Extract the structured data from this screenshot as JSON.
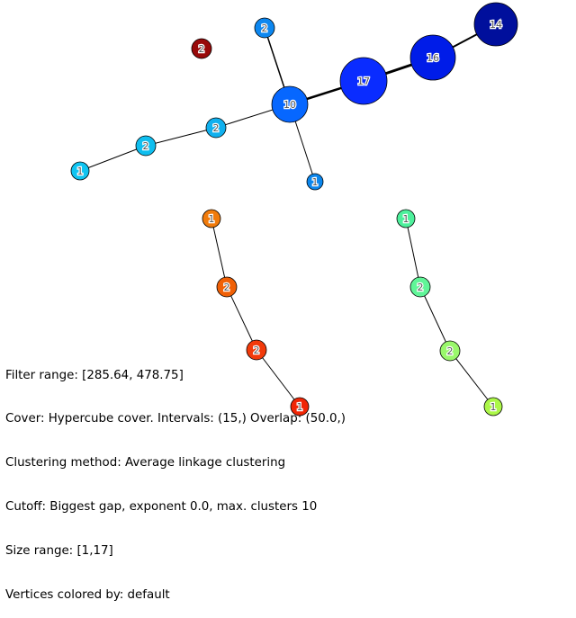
{
  "graph": {
    "nodes": [
      {
        "id": "n14",
        "label": "14",
        "color": "#000f9c"
      },
      {
        "id": "n16",
        "label": "16",
        "color": "#001ce8"
      },
      {
        "id": "n17",
        "label": "17",
        "color": "#0a2cff"
      },
      {
        "id": "n10",
        "label": "10",
        "color": "#0667ff"
      },
      {
        "id": "n2a",
        "label": "2",
        "color": "#0c87f0"
      },
      {
        "id": "n1a",
        "label": "1",
        "color": "#0b86ec"
      },
      {
        "id": "n2b",
        "label": "2",
        "color": "#11b0ee"
      },
      {
        "id": "n2c",
        "label": "2",
        "color": "#0fbeef"
      },
      {
        "id": "n1b",
        "label": "1",
        "color": "#10c4f1"
      },
      {
        "id": "n2red",
        "label": "2",
        "color": "#980a0a"
      },
      {
        "id": "n1c",
        "label": "1",
        "color": "#f07b0c"
      },
      {
        "id": "n2d",
        "label": "2",
        "color": "#f06006"
      },
      {
        "id": "n2e",
        "label": "2",
        "color": "#f23a0a"
      },
      {
        "id": "n1d",
        "label": "1",
        "color": "#f02606"
      },
      {
        "id": "n1e",
        "label": "1",
        "color": "#4ef09c"
      },
      {
        "id": "n2f",
        "label": "2",
        "color": "#60f598"
      },
      {
        "id": "n2g",
        "label": "2",
        "color": "#9af76c"
      },
      {
        "id": "n1f",
        "label": "1",
        "color": "#acf748"
      }
    ],
    "edges": [
      {
        "from": "n14",
        "to": "n16",
        "weight": 2
      },
      {
        "from": "n16",
        "to": "n17",
        "weight": 3
      },
      {
        "from": "n17",
        "to": "n10",
        "weight": 2.5
      },
      {
        "from": "n10",
        "to": "n2a",
        "weight": 1.5
      },
      {
        "from": "n10",
        "to": "n1a",
        "weight": 1
      },
      {
        "from": "n10",
        "to": "n2b",
        "weight": 1
      },
      {
        "from": "n2b",
        "to": "n2c",
        "weight": 1
      },
      {
        "from": "n2c",
        "to": "n1b",
        "weight": 1
      },
      {
        "from": "n1c",
        "to": "n2d",
        "weight": 1
      },
      {
        "from": "n2d",
        "to": "n2e",
        "weight": 1
      },
      {
        "from": "n2e",
        "to": "n1d",
        "weight": 1
      },
      {
        "from": "n1e",
        "to": "n2f",
        "weight": 1
      },
      {
        "from": "n2f",
        "to": "n2g",
        "weight": 1
      },
      {
        "from": "n2g",
        "to": "n1f",
        "weight": 1
      }
    ]
  },
  "info": {
    "filter_range": "Filter range: [285.64, 478.75]",
    "cover": "Cover: Hypercube cover. Intervals: (15,) Overlap: (50.0,)",
    "clustering": "Clustering method: Average linkage clustering",
    "cutoff": "Cutoff: Biggest gap, exponent 0.0, max. clusters 10",
    "size_range": "Size range: [1,17]",
    "vertices_colored": "Vertices colored by: default"
  }
}
